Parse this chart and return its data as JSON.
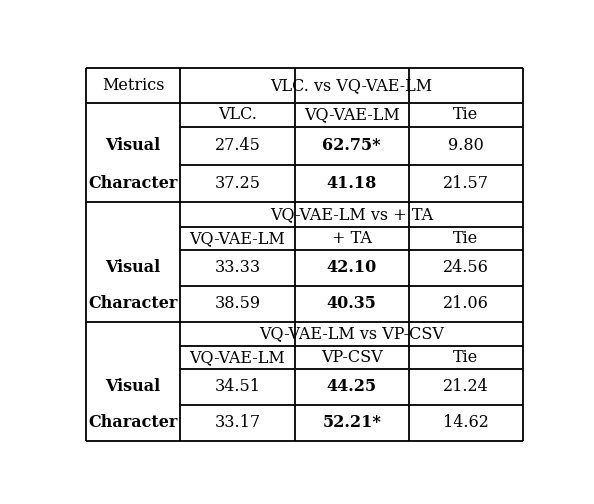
{
  "sections": [
    {
      "header": "VLC. vs VQ-VAE-LM",
      "col_headers": [
        "VLC.",
        "VQ-VAE-LM",
        "Tie"
      ],
      "rows": [
        {
          "metric": "Visual",
          "values": [
            "27.45",
            "62.75*",
            "9.80"
          ],
          "bold": [
            false,
            true,
            false
          ]
        },
        {
          "metric": "Character",
          "values": [
            "37.25",
            "41.18",
            "21.57"
          ],
          "bold": [
            false,
            true,
            false
          ]
        }
      ]
    },
    {
      "header": "VQ-VAE-LM vs + TA",
      "col_headers": [
        "VQ-VAE-LM",
        "+ TA",
        "Tie"
      ],
      "rows": [
        {
          "metric": "Visual",
          "values": [
            "33.33",
            "42.10",
            "24.56"
          ],
          "bold": [
            false,
            true,
            false
          ]
        },
        {
          "metric": "Character",
          "values": [
            "38.59",
            "40.35",
            "21.06"
          ],
          "bold": [
            false,
            true,
            false
          ]
        }
      ]
    },
    {
      "header": "VQ-VAE-LM vs VP-CSV",
      "col_headers": [
        "VQ-VAE-LM",
        "VP-CSV",
        "Tie"
      ],
      "rows": [
        {
          "metric": "Visual",
          "values": [
            "34.51",
            "44.25",
            "21.24"
          ],
          "bold": [
            false,
            true,
            false
          ]
        },
        {
          "metric": "Character",
          "values": [
            "33.17",
            "52.21*",
            "14.62"
          ],
          "bold": [
            false,
            true,
            false
          ]
        }
      ]
    }
  ],
  "metrics_label": "Metrics",
  "bg_color": "#ffffff",
  "font_size": 11.5
}
